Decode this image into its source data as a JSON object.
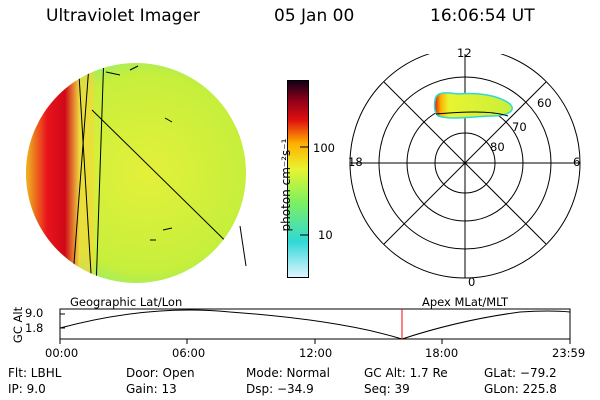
{
  "header": {
    "title": "Ultraviolet Imager",
    "date": "05 Jan 00",
    "time": "16:06:54 UT"
  },
  "colorbar": {
    "label": "photon cm⁻²s⁻¹",
    "ticks": [
      "100",
      "10"
    ]
  },
  "polar_plot": {
    "mlt_labels": {
      "top": "12",
      "left": "18",
      "right": "6",
      "bottom": "0"
    },
    "lat_labels": [
      "60",
      "70",
      "80"
    ]
  },
  "panel_labels": {
    "left": "Geographic Lat/Lon",
    "right": "Apex MLat/MLT"
  },
  "timeline": {
    "ylabel": "GC Alt",
    "yticks": [
      "9.0",
      "1.8"
    ],
    "xticks": [
      "00:00",
      "06:00",
      "12:00",
      "18:00",
      "23:59"
    ]
  },
  "footer": {
    "flt": "Flt: LBHL",
    "ip": "IP:  9.0",
    "door": "Door: Open",
    "gain": "Gain: 13",
    "mode": "Mode: Normal",
    "dsp": "Dsp:  −34.9",
    "gcalt": "GC Alt: 1.7 Re",
    "seq": "Seq: 39",
    "glat": "GLat: −79.2",
    "glon": "GLon: 225.8"
  },
  "colors": {
    "disk_fill": "#c8ef3a",
    "limb_red": "#e8141c",
    "colorbar_stops": [
      "#dff5ff",
      "#30d8d8",
      "#7cf060",
      "#e8f430",
      "#ffb000",
      "#e01010",
      "#90001a",
      "#100018"
    ],
    "time_marker": "#ff0000"
  }
}
